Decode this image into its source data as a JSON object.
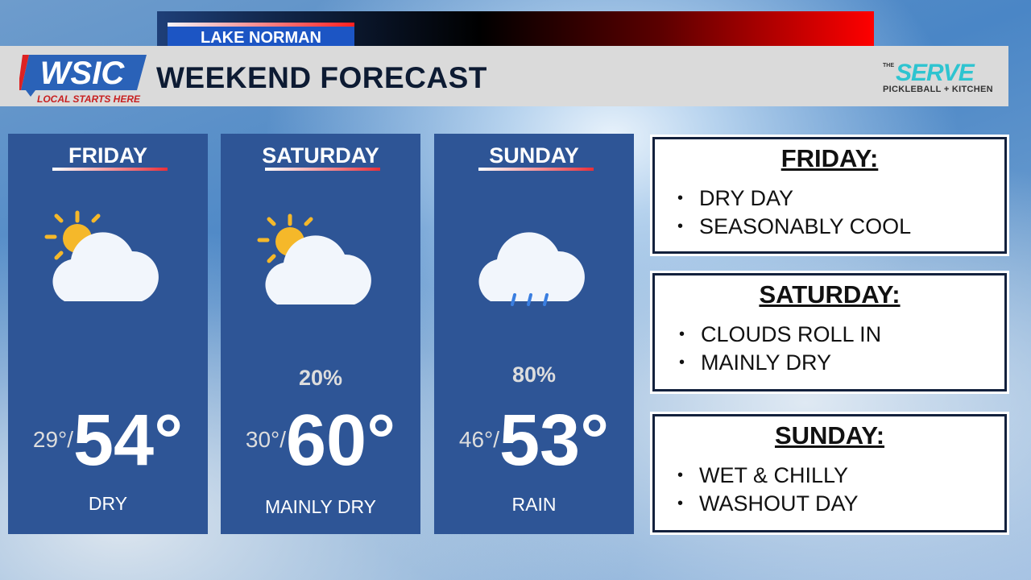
{
  "header": {
    "location": "LAKE NORMAN",
    "title": "WEEKEND FORECAST",
    "station_logo": "WSIC",
    "station_tagline": "LOCAL STARTS HERE",
    "sponsor": {
      "the": "THE",
      "name": "SERVE",
      "sub": "PICKLEBALL + KITCHEN"
    }
  },
  "colors": {
    "card": "#2e5596",
    "title": "#0d1b33",
    "accent_red": "#e8303a",
    "sponsor": "#2ec4d0"
  },
  "days": [
    {
      "name": "FRIDAY",
      "icon": "partly-cloudy-icon",
      "pop": "",
      "low": "29°/",
      "high": "54°",
      "condition": "DRY"
    },
    {
      "name": "SATURDAY",
      "icon": "partly-cloudy-icon",
      "pop": "20%",
      "low": "30°/",
      "high": "60°",
      "condition": "MAINLY DRY"
    },
    {
      "name": "SUNDAY",
      "icon": "rain-cloud-icon",
      "pop": "80%",
      "low": "46°/",
      "high": "53°",
      "condition": "RAIN"
    }
  ],
  "summaries": [
    {
      "title": "FRIDAY:",
      "bullets": [
        "DRY DAY",
        "SEASONABLY COOL"
      ]
    },
    {
      "title": "SATURDAY:",
      "bullets": [
        "CLOUDS ROLL IN",
        "MAINLY DRY"
      ]
    },
    {
      "title": "SUNDAY:",
      "bullets": [
        "WET & CHILLY",
        "WASHOUT DAY"
      ]
    }
  ]
}
